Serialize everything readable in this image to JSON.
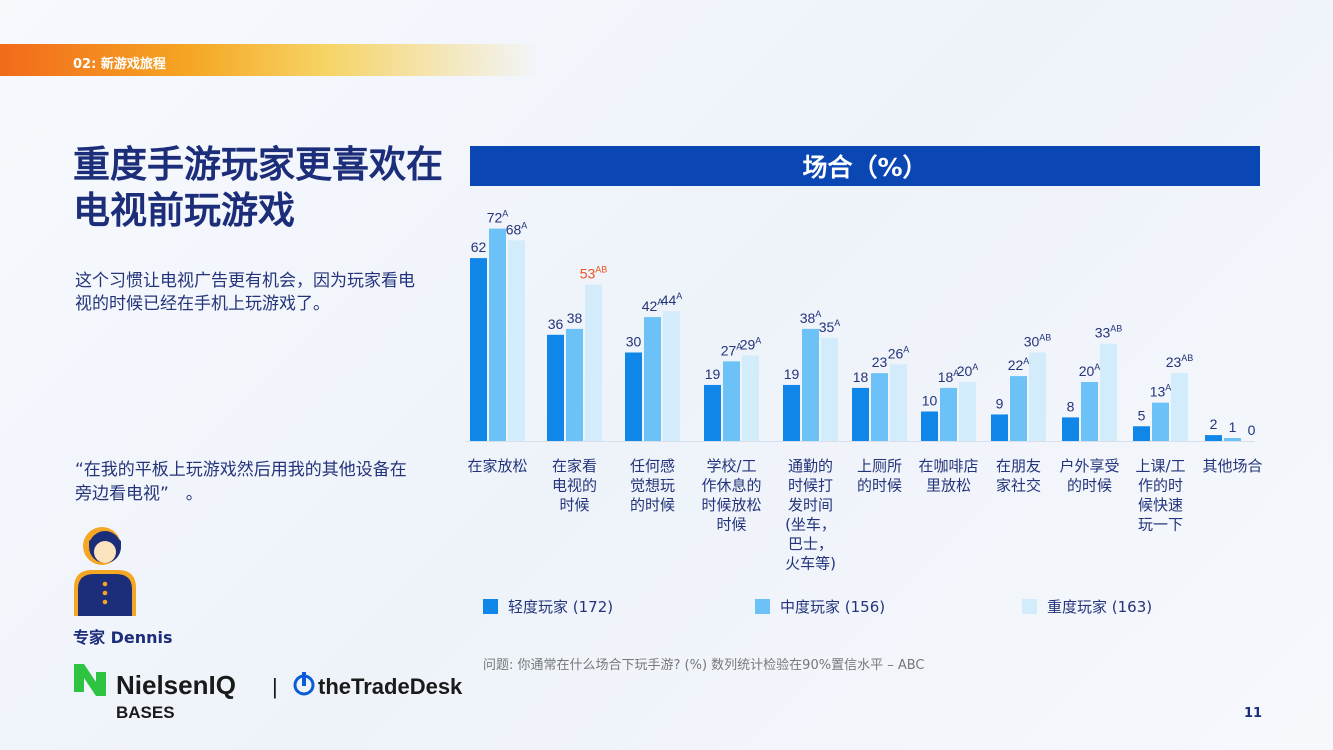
{
  "header": {
    "section_label": "02: 新游戏旅程"
  },
  "headline": "重度手游玩家更喜欢在电视前玩游戏",
  "intro": "这个习惯让电视广告更有机会，因为玩家看电视的时候已经在手机上玩游戏了。",
  "quote": "“在我的平板上玩游戏然后用我的其他设备在旁边看电视”　。",
  "expert": {
    "name": "专家 Dennis",
    "icon": "expert-avatar-icon"
  },
  "colors": {
    "light": "#1087e8",
    "medium": "#6cc2f7",
    "heavy": "#d3ecfb",
    "title_bar": "#0a47b3",
    "highlight": "#e8541e",
    "accent_orange": "#f5a623"
  },
  "chart_data": {
    "type": "bar",
    "title": "场合（%）",
    "xlabel": "",
    "ylabel": "",
    "ylim": [
      0,
      80
    ],
    "categories": [
      "在家放松",
      "在家看电视的时候",
      "任何感觉想玩的时候",
      "学校/工作休息的时候放松时候",
      "通勤的时候打发时间(坐车，巴士，火车等)",
      "上厕所的时候",
      "在咖啡店里放松",
      "在朋友家社交",
      "户外享受的时候",
      "上课/工作的时候快速玩一下",
      "其他场合"
    ],
    "category_lines": [
      [
        "在家放松"
      ],
      [
        "在家看",
        "电视的",
        "时候"
      ],
      [
        "任何感",
        "觉想玩",
        "的时候"
      ],
      [
        "学校/工",
        "作休息的",
        "时候放松",
        "时候"
      ],
      [
        "通勤的",
        "时候打",
        "发时间",
        "(坐车，",
        "巴士，",
        "火车等)"
      ],
      [
        "上厕所",
        "的时候"
      ],
      [
        "在咖啡店",
        "里放松"
      ],
      [
        "在朋友",
        "家社交"
      ],
      [
        "户外享受",
        "的时候"
      ],
      [
        "上课/工",
        "作的时",
        "候快速",
        "玩一下"
      ],
      [
        "其他场合"
      ]
    ],
    "series": [
      {
        "name": "轻度玩家 (172)",
        "values": [
          62,
          36,
          30,
          19,
          19,
          18,
          10,
          9,
          8,
          5,
          2
        ],
        "sig": [
          "",
          "",
          "",
          "",
          "",
          "",
          "",
          "",
          "",
          "",
          ""
        ]
      },
      {
        "name": "中度玩家 (156)",
        "values": [
          72,
          38,
          42,
          27,
          38,
          23,
          18,
          22,
          20,
          13,
          1
        ],
        "sig": [
          "A",
          "",
          "A",
          "A",
          "A",
          "",
          "A",
          "A",
          "A",
          "A",
          ""
        ]
      },
      {
        "name": "重度玩家 (163)",
        "values": [
          68,
          53,
          44,
          29,
          35,
          26,
          20,
          30,
          33,
          23,
          0
        ],
        "sig": [
          "A",
          "AB",
          "A",
          "A",
          "A",
          "A",
          "A",
          "AB",
          "AB",
          "AB",
          ""
        ]
      }
    ],
    "highlight": {
      "series": 2,
      "category": 1
    },
    "legend_position": "bottom"
  },
  "source_note": "问题: 你通常在什么场合下玩手游? (%) 数列统计检验在90%置信水平 – ABC",
  "logos": {
    "nielsen_line1": "NielsenIQ",
    "nielsen_line2": "BASES",
    "separator": "|",
    "tradedesk": "theTradeDesk"
  },
  "page_number": "11"
}
